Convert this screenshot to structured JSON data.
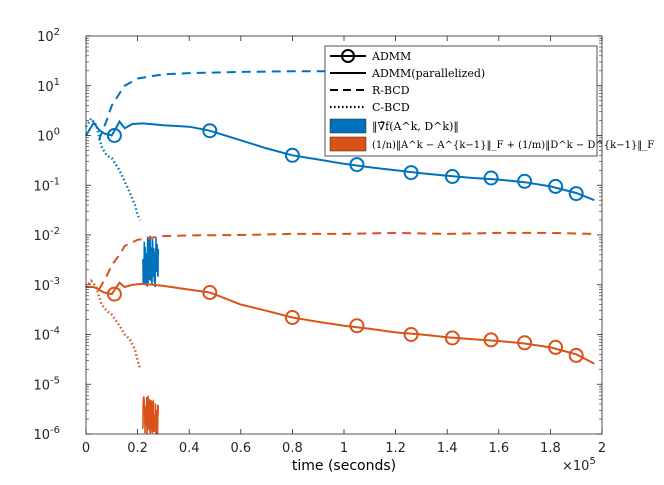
{
  "chart_data": {
    "type": "line",
    "xlabel": "time (seconds)",
    "x_scale_label": "×10",
    "x_scale_exp": "5",
    "xlim": [
      0,
      2.0
    ],
    "ylim": [
      1e-06,
      100
    ],
    "yscale": "log",
    "x_ticks": [
      "0",
      "0.2",
      "0.4",
      "0.6",
      "0.8",
      "1",
      "1.2",
      "1.4",
      "1.6",
      "1.8",
      "2"
    ],
    "y_ticks": [
      {
        "base": "10",
        "exp": "-6"
      },
      {
        "base": "10",
        "exp": "-5"
      },
      {
        "base": "10",
        "exp": "-4"
      },
      {
        "base": "10",
        "exp": "-3"
      },
      {
        "base": "10",
        "exp": "-2"
      },
      {
        "base": "10",
        "exp": "-1"
      },
      {
        "base": "10",
        "exp": "0"
      },
      {
        "base": "10",
        "exp": "1"
      },
      {
        "base": "10",
        "exp": "2"
      }
    ],
    "grid": false,
    "legend_position": "top-right",
    "legend": [
      {
        "label": "ADMM",
        "style": "circle-marker"
      },
      {
        "label": "ADMM(parallelized)",
        "style": "solid"
      },
      {
        "label": "R-BCD",
        "style": "dashed"
      },
      {
        "label": "C-BCD",
        "style": "dotted"
      },
      {
        "label": "‖∇̃f(A^k, D^k)‖",
        "style": "patch",
        "color": "#0072BD"
      },
      {
        "label": "(1/n)‖A^k − A^{k−1}‖_F + (1/m)‖D^k − D^{k−1}‖_F",
        "style": "patch",
        "color": "#D95319"
      }
    ],
    "colors": {
      "blue": "#0072BD",
      "orange": "#D95319"
    },
    "series": [
      {
        "name": "ADMM",
        "color": "blue",
        "style": "circle-marker",
        "x": [
          0.11,
          0.48,
          0.8,
          1.05,
          1.26,
          1.42,
          1.57,
          1.7,
          1.82,
          1.9
        ],
        "y": [
          1.0,
          1.25,
          0.4,
          0.26,
          0.18,
          0.15,
          0.14,
          0.12,
          0.095,
          0.068
        ]
      },
      {
        "name": "ADMM",
        "color": "orange",
        "style": "circle-marker",
        "x": [
          0.11,
          0.48,
          0.8,
          1.05,
          1.26,
          1.42,
          1.57,
          1.7,
          1.82,
          1.9
        ],
        "y": [
          0.00065,
          0.0007,
          0.00022,
          0.00015,
          0.0001,
          8.5e-05,
          7.8e-05,
          6.8e-05,
          5.5e-05,
          3.8e-05
        ]
      },
      {
        "name": "ADMM(parallelized)",
        "color": "blue",
        "style": "solid",
        "x": [
          0.0,
          0.03,
          0.05,
          0.07,
          0.1,
          0.13,
          0.15,
          0.18,
          0.22,
          0.3,
          0.4,
          0.48,
          0.6,
          0.7,
          0.8,
          0.9,
          1.0,
          1.1,
          1.2,
          1.3,
          1.4,
          1.5,
          1.6,
          1.7,
          1.8,
          1.9,
          1.97
        ],
        "y": [
          1.0,
          1.8,
          1.3,
          1.1,
          1.0,
          1.9,
          1.4,
          1.7,
          1.75,
          1.6,
          1.5,
          1.25,
          0.8,
          0.55,
          0.4,
          0.33,
          0.27,
          0.23,
          0.2,
          0.175,
          0.155,
          0.14,
          0.13,
          0.115,
          0.095,
          0.07,
          0.05
        ]
      },
      {
        "name": "ADMM(parallelized)",
        "color": "orange",
        "style": "solid",
        "x": [
          0.0,
          0.03,
          0.05,
          0.07,
          0.1,
          0.13,
          0.15,
          0.18,
          0.22,
          0.3,
          0.4,
          0.48,
          0.6,
          0.7,
          0.8,
          0.9,
          1.0,
          1.1,
          1.2,
          1.3,
          1.4,
          1.5,
          1.6,
          1.7,
          1.8,
          1.9,
          1.97
        ],
        "y": [
          0.0009,
          0.0009,
          0.0008,
          0.0007,
          0.00065,
          0.0011,
          0.0009,
          0.001,
          0.00105,
          0.00095,
          0.0008,
          0.0007,
          0.0004,
          0.0003,
          0.00022,
          0.00018,
          0.00015,
          0.00013,
          0.00011,
          0.0001,
          8.8e-05,
          8e-05,
          7.4e-05,
          6.6e-05,
          5.5e-05,
          4e-05,
          2.6e-05
        ]
      },
      {
        "name": "R-BCD",
        "color": "blue",
        "style": "dashed",
        "x": [
          0.05,
          0.08,
          0.1,
          0.13,
          0.15,
          0.2,
          0.3,
          0.4,
          0.6,
          0.8,
          1.0,
          1.2,
          1.4,
          1.6,
          1.8,
          1.97
        ],
        "y": [
          0.8,
          2.0,
          4.0,
          7.0,
          10.0,
          14.0,
          17.0,
          18.0,
          19.0,
          19.5,
          19.5,
          20.0,
          20.0,
          20.0,
          20.0,
          19.5
        ]
      },
      {
        "name": "R-BCD",
        "color": "orange",
        "style": "dashed",
        "x": [
          0.05,
          0.08,
          0.1,
          0.13,
          0.15,
          0.2,
          0.3,
          0.4,
          0.6,
          0.8,
          1.0,
          1.2,
          1.4,
          1.6,
          1.8,
          1.97
        ],
        "y": [
          0.0008,
          0.0015,
          0.0025,
          0.004,
          0.006,
          0.008,
          0.0095,
          0.0098,
          0.01,
          0.0105,
          0.0105,
          0.011,
          0.0105,
          0.011,
          0.011,
          0.0105
        ]
      },
      {
        "name": "C-BCD",
        "color": "blue",
        "style": "dotted",
        "x": [
          0.0,
          0.02,
          0.04,
          0.06,
          0.08,
          0.1,
          0.13,
          0.15,
          0.17,
          0.19,
          0.2,
          0.21
        ],
        "y": [
          1.5,
          2.2,
          1.6,
          0.6,
          0.4,
          0.35,
          0.2,
          0.12,
          0.07,
          0.04,
          0.025,
          0.02
        ]
      },
      {
        "name": "C-BCD",
        "color": "orange",
        "style": "dotted",
        "x": [
          0.0,
          0.02,
          0.04,
          0.06,
          0.08,
          0.1,
          0.13,
          0.15,
          0.17,
          0.19,
          0.2,
          0.21
        ],
        "y": [
          0.0009,
          0.0012,
          0.0009,
          0.0004,
          0.0003,
          0.00025,
          0.00015,
          0.0001,
          8e-05,
          5e-05,
          3e-05,
          2e-05
        ]
      }
    ],
    "bursts": [
      {
        "color": "blue",
        "x_range": [
          0.22,
          0.28
        ],
        "y_range": [
          0.0008,
          0.01
        ]
      },
      {
        "color": "orange",
        "x_range": [
          0.22,
          0.28
        ],
        "y_range": [
          1e-06,
          6e-06
        ]
      }
    ]
  }
}
